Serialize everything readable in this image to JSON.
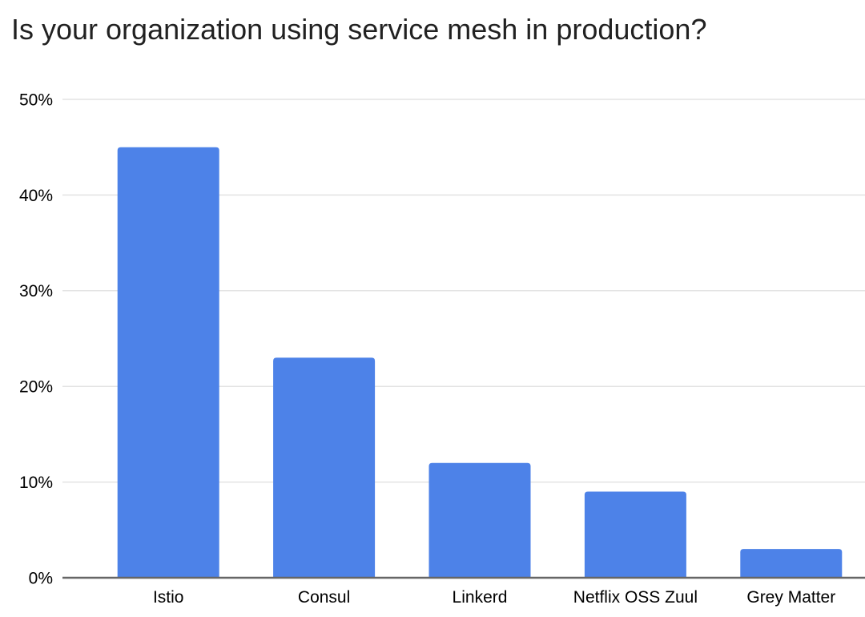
{
  "chart_data": {
    "type": "bar",
    "title": "Is your organization using service mesh in production?",
    "categories": [
      "Istio",
      "Consul",
      "Linkerd",
      "Netflix OSS Zuul",
      "Grey Matter"
    ],
    "values": [
      45,
      23,
      12,
      9,
      3
    ],
    "value_unit": "%",
    "xlabel": "",
    "ylabel": "",
    "ylim": [
      0,
      50
    ],
    "ytick_step": 10,
    "ytick_labels": [
      "0%",
      "10%",
      "20%",
      "30%",
      "40%",
      "50%"
    ],
    "grid": true,
    "legend_position": "none",
    "colors": {
      "bar": "#4d82e8",
      "gridline": "#e3e3e3",
      "axis_line": "#666666",
      "tick_text": "#000000",
      "title_text": "#212121",
      "background": "#ffffff"
    }
  }
}
